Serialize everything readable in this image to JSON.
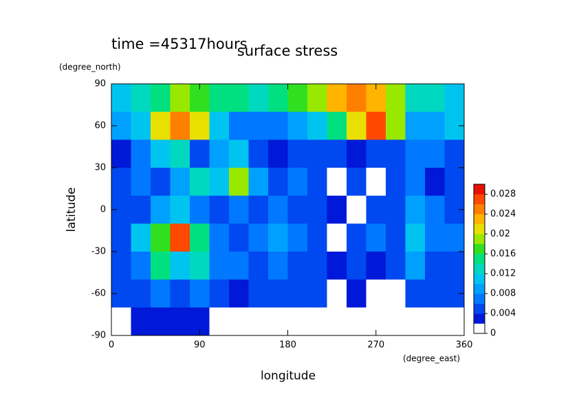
{
  "chart_data": {
    "type": "contour",
    "title": "surface stress",
    "annotation": "time =45317hours",
    "xlabel": "longitude",
    "ylabel": "latitude",
    "xunits": "(degree_east)",
    "yunits": "(degree_north)",
    "xlim": [
      0,
      360
    ],
    "ylim": [
      -90,
      90
    ],
    "xticks": [
      0,
      90,
      180,
      270,
      360
    ],
    "yticks": [
      -90,
      -60,
      -30,
      0,
      30,
      60,
      90
    ],
    "x": [
      10,
      30,
      50,
      70,
      90,
      110,
      130,
      150,
      170,
      190,
      210,
      230,
      250,
      270,
      290,
      310,
      330,
      350
    ],
    "y": [
      80,
      60,
      40,
      20,
      0,
      -20,
      -40,
      -60,
      -80
    ],
    "z": [
      [
        0.01,
        0.012,
        0.014,
        0.018,
        0.016,
        0.014,
        0.014,
        0.012,
        0.014,
        0.016,
        0.018,
        0.022,
        0.024,
        0.022,
        0.018,
        0.012,
        0.012,
        0.01
      ],
      [
        0.008,
        0.01,
        0.02,
        0.024,
        0.02,
        0.01,
        0.006,
        0.006,
        0.006,
        0.008,
        0.01,
        0.014,
        0.02,
        0.026,
        0.018,
        0.008,
        0.008,
        0.01
      ],
      [
        0.002,
        0.006,
        0.01,
        0.012,
        0.004,
        0.008,
        0.01,
        0.004,
        0.002,
        0.004,
        0.004,
        0.004,
        0.002,
        0.004,
        0.004,
        0.006,
        0.006,
        0.004
      ],
      [
        0.004,
        0.006,
        0.004,
        0.008,
        0.012,
        0.01,
        0.018,
        0.008,
        0.004,
        0.006,
        0.004,
        0.0,
        0.004,
        0.0,
        0.004,
        0.006,
        0.002,
        0.004
      ],
      [
        0.004,
        0.004,
        0.008,
        0.01,
        0.006,
        0.004,
        0.006,
        0.004,
        0.006,
        0.004,
        0.004,
        0.002,
        0.0,
        0.004,
        0.004,
        0.008,
        0.006,
        0.004
      ],
      [
        0.004,
        0.01,
        0.016,
        0.026,
        0.014,
        0.006,
        0.004,
        0.006,
        0.008,
        0.006,
        0.004,
        0.0,
        0.004,
        0.006,
        0.004,
        0.01,
        0.006,
        0.006
      ],
      [
        0.004,
        0.006,
        0.014,
        0.01,
        0.012,
        0.006,
        0.006,
        0.004,
        0.006,
        0.004,
        0.004,
        0.002,
        0.004,
        0.002,
        0.004,
        0.008,
        0.004,
        0.004
      ],
      [
        0.004,
        0.004,
        0.006,
        0.004,
        0.006,
        0.004,
        0.002,
        0.004,
        0.004,
        0.004,
        0.004,
        0.0,
        0.002,
        0.0,
        0.0,
        0.004,
        0.004,
        0.004
      ],
      [
        0.0,
        0.002,
        0.002,
        0.002,
        0.002,
        0.0,
        0.0,
        0.0,
        0.0,
        0.0,
        0.0,
        0.0,
        0.0,
        0.0,
        0.0,
        0.0,
        0.0,
        0.0
      ]
    ],
    "colorbar": {
      "levels": [
        0,
        0.002,
        0.004,
        0.006,
        0.008,
        0.01,
        0.012,
        0.014,
        0.016,
        0.018,
        0.02,
        0.022,
        0.024,
        0.026,
        0.028,
        0.03
      ],
      "colors": [
        "#ffffff",
        "#0018d8",
        "#0048f0",
        "#0078ff",
        "#00a0ff",
        "#00c4f0",
        "#00d8c0",
        "#00e080",
        "#30e020",
        "#98e800",
        "#e8e000",
        "#ffb400",
        "#ff8000",
        "#ff4800",
        "#e81000"
      ],
      "ticks": [
        0,
        0.004,
        0.008,
        0.012,
        0.016,
        0.02,
        0.024,
        0.028
      ]
    }
  }
}
